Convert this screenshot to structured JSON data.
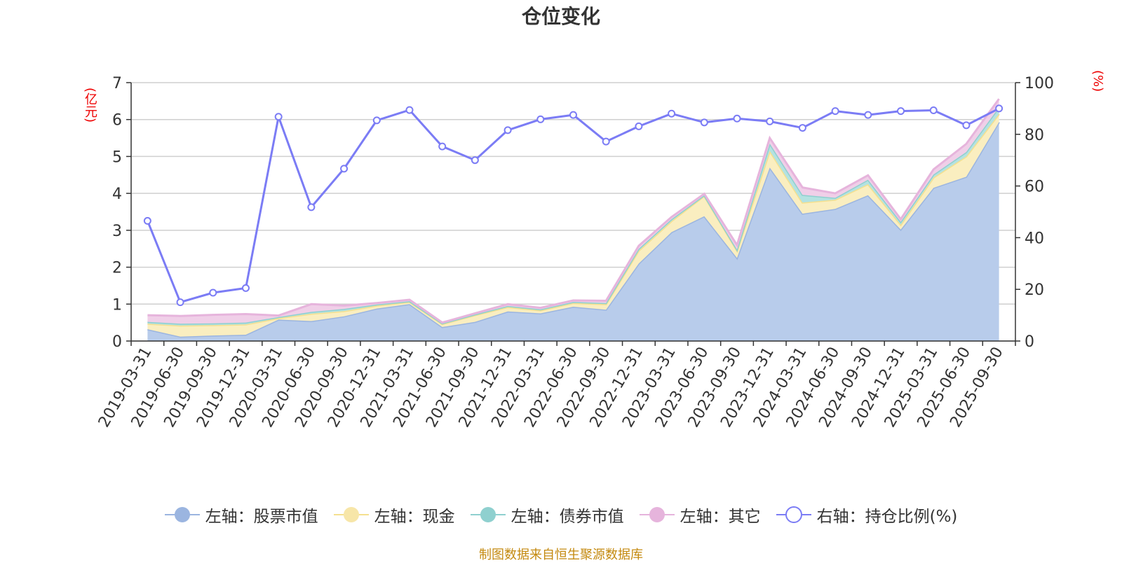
{
  "title": "仓位变化",
  "source_note": "制图数据来自恒生聚源数据库",
  "chart_data": {
    "type": "area",
    "title": "仓位变化",
    "ylabel_left": "(亿元)",
    "ylabel_right": "(%)",
    "ylim_left": [
      0,
      7
    ],
    "ylim_right": [
      0,
      100
    ],
    "yticks_left": [
      0,
      1,
      2,
      3,
      4,
      5,
      6,
      7
    ],
    "yticks_right": [
      0,
      20,
      40,
      60,
      80,
      100
    ],
    "grid": true,
    "legend_position": "bottom",
    "x": [
      "2019-03-31",
      "2019-06-30",
      "2019-09-30",
      "2019-12-31",
      "2020-03-31",
      "2020-06-30",
      "2020-09-30",
      "2020-12-31",
      "2021-03-31",
      "2021-06-30",
      "2021-09-30",
      "2021-12-31",
      "2022-03-31",
      "2022-06-30",
      "2022-09-30",
      "2022-12-31",
      "2023-03-31",
      "2023-06-30",
      "2023-09-30",
      "2023-12-31",
      "2024-03-31",
      "2024-06-30",
      "2024-09-30",
      "2024-12-31",
      "2025-03-31",
      "2025-06-30",
      "2025-09-30"
    ],
    "series": [
      {
        "name": "左轴：股票市值",
        "axis": "left",
        "stack": true,
        "color": "#9bb5e0",
        "fill": "#b8cceb",
        "values": [
          0.32,
          0.12,
          0.15,
          0.17,
          0.58,
          0.54,
          0.67,
          0.88,
          1.0,
          0.38,
          0.52,
          0.8,
          0.75,
          0.93,
          0.85,
          2.1,
          2.95,
          3.38,
          2.25,
          4.7,
          3.45,
          3.58,
          3.95,
          3.02,
          4.15,
          4.45,
          5.93
        ]
      },
      {
        "name": "左轴：现金",
        "axis": "left",
        "stack": true,
        "color": "#f5e08f",
        "fill": "#faeec0",
        "values": [
          0.15,
          0.3,
          0.28,
          0.28,
          0.04,
          0.2,
          0.14,
          0.08,
          0.06,
          0.08,
          0.18,
          0.12,
          0.08,
          0.1,
          0.15,
          0.35,
          0.3,
          0.55,
          0.2,
          0.45,
          0.3,
          0.25,
          0.3,
          0.13,
          0.28,
          0.55,
          0.22
        ]
      },
      {
        "name": "左轴：债券市值",
        "axis": "left",
        "stack": true,
        "color": "#8fd0cf",
        "fill": "#b4e2e1",
        "values": [
          0.05,
          0.05,
          0.05,
          0.05,
          0.03,
          0.05,
          0.06,
          0.03,
          0.02,
          0.02,
          0.02,
          0.03,
          0.03,
          0.03,
          0.03,
          0.05,
          0.05,
          0.02,
          0.03,
          0.2,
          0.21,
          0.05,
          0.12,
          0.08,
          0.08,
          0.12,
          0.18
        ]
      },
      {
        "name": "左轴：其它",
        "axis": "left",
        "stack": true,
        "color": "#e6b4dc",
        "fill": "#f0cfe8",
        "values": [
          0.18,
          0.21,
          0.23,
          0.23,
          0.04,
          0.21,
          0.09,
          0.04,
          0.04,
          0.02,
          0.03,
          0.05,
          0.04,
          0.04,
          0.06,
          0.08,
          0.06,
          0.04,
          0.12,
          0.15,
          0.2,
          0.12,
          0.12,
          0.07,
          0.14,
          0.22,
          0.23
        ]
      },
      {
        "name": "右轴：持仓比例(%)",
        "axis": "right",
        "type": "line",
        "color": "#7b7cf5",
        "values": [
          46.5,
          15.0,
          18.7,
          20.5,
          86.8,
          51.8,
          66.7,
          85.4,
          89.4,
          75.3,
          70.0,
          81.6,
          85.8,
          87.5,
          77.2,
          83.1,
          88.0,
          84.6,
          86.1,
          85.0,
          82.5,
          89.0,
          87.5,
          89.0,
          89.3,
          83.5,
          90.0
        ]
      }
    ]
  },
  "legend": [
    {
      "label": "左轴：股票市值",
      "color": "#9bb5e0",
      "style": "filled-circle"
    },
    {
      "label": "左轴：现金",
      "color": "#f5e08f",
      "style": "filled-circle"
    },
    {
      "label": "左轴：债券市值",
      "color": "#8fd0cf",
      "style": "filled-circle"
    },
    {
      "label": "左轴：其它",
      "color": "#e6b4dc",
      "style": "filled-circle"
    },
    {
      "label": "右轴：持仓比例(%)",
      "color": "#7b7cf5",
      "style": "hollow-circle"
    }
  ]
}
